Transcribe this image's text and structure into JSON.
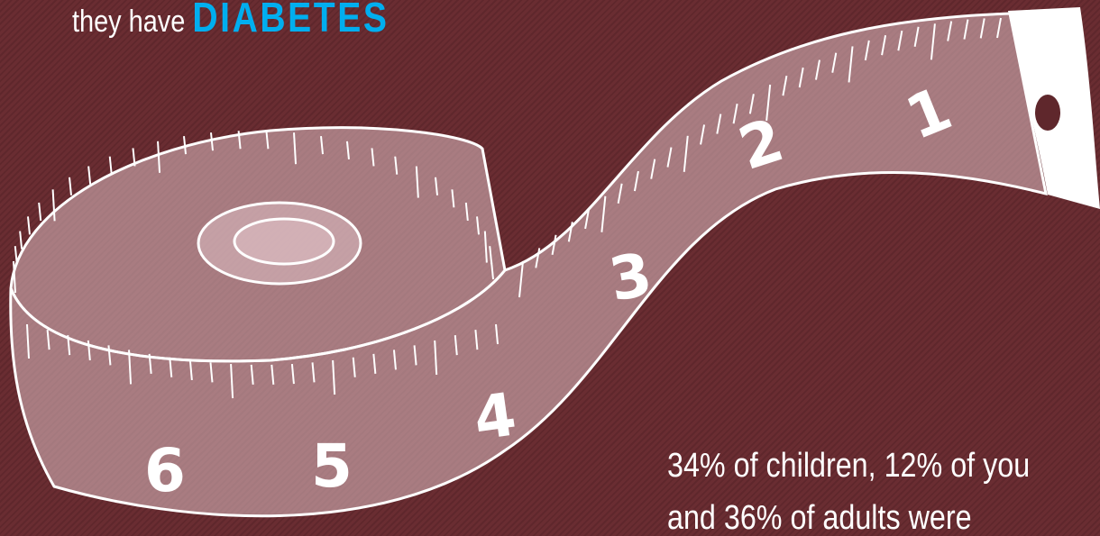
{
  "header": {
    "lead": "they have",
    "highlight": "DIABETES"
  },
  "tape": {
    "numbers": [
      "1",
      "2",
      "3",
      "4",
      "5",
      "6"
    ]
  },
  "body": {
    "lines": [
      "34% of children, 12% of you",
      "and 36% of adults were"
    ]
  }
}
